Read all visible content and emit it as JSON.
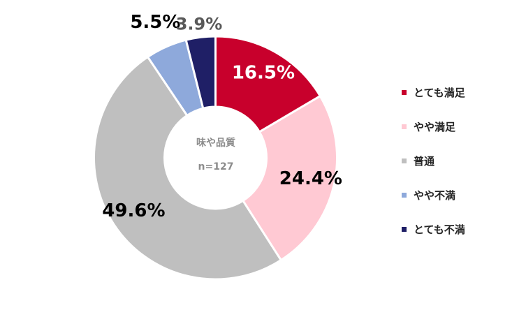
{
  "chart_data": {
    "type": "pie",
    "center_label": "味や品質",
    "sample_size": "n=127",
    "categories": [
      "とても満足",
      "やや満足",
      "普通",
      "やや不満",
      "とても不満"
    ],
    "values": [
      16.5,
      24.4,
      49.6,
      5.5,
      3.9
    ],
    "value_labels": [
      "16.5%",
      "24.4%",
      "49.6%",
      "5.5%",
      "3.9%"
    ],
    "colors": [
      "#C8002C",
      "#FFC9D3",
      "#BFBFBF",
      "#8EA9DB",
      "#1F1F66"
    ],
    "label_colors": [
      "#FFFFFF",
      "#000000",
      "#000000",
      "#000000",
      "#595959"
    ],
    "legend_placement": "right",
    "start_angle_deg": 0,
    "direction": "clockwise",
    "hole": "donut"
  },
  "legend": {
    "items": [
      "とても満足",
      "やや満足",
      "普通",
      "やや不満",
      "とても不満"
    ]
  }
}
